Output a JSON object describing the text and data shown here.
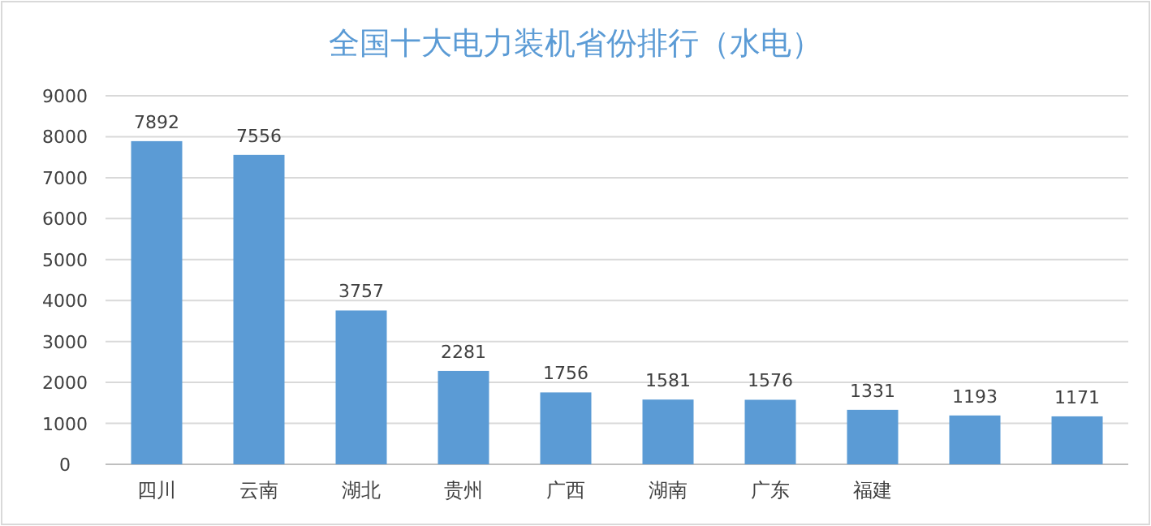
{
  "chart_data": {
    "type": "bar",
    "title": "全国十大电力装机省份排行（水电）",
    "categories": [
      "四川",
      "云南",
      "湖北",
      "贵州",
      "广西",
      "湖南",
      "广东",
      "福建",
      null,
      null
    ],
    "values": [
      7892,
      7556,
      3757,
      2281,
      1756,
      1581,
      1576,
      1331,
      1193,
      1171
    ],
    "color": "#5b9bd5",
    "ylim": [
      0,
      9000
    ],
    "yticks": [
      0,
      1000,
      2000,
      3000,
      4000,
      5000,
      6000,
      7000,
      8000,
      9000
    ],
    "grid": "y",
    "data_labels": true
  }
}
